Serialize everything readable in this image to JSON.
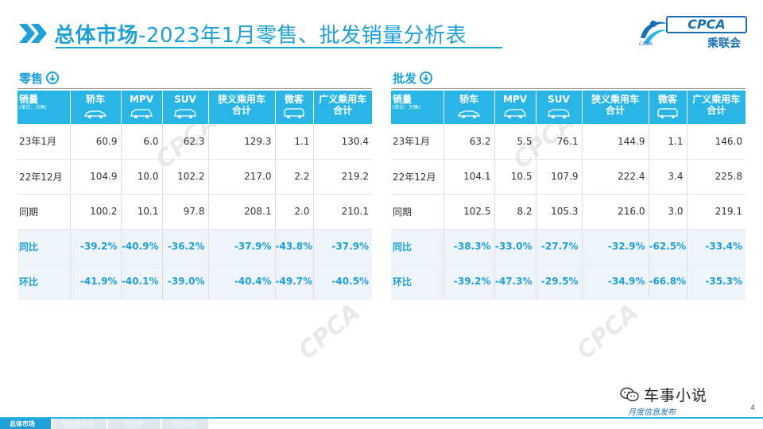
{
  "header": {
    "title_bold": "总体市场",
    "title_rest": "-2023年1月零售、批发销量分析表"
  },
  "logo": {
    "en": "CPCA",
    "cn": "乘联会",
    "sub": "CADA"
  },
  "retail": {
    "label": "零售",
    "columns": [
      "销量",
      "轿车",
      "MPV",
      "SUV",
      "狭义乘用车\n合计",
      "微客",
      "广义乘用车\n合计"
    ],
    "unit": "(单位：万辆)",
    "rows": [
      {
        "name": "23年1月",
        "cells": [
          "60.9",
          "6.0",
          "62.3",
          "129.3",
          "1.1",
          "130.4"
        ],
        "pct": false
      },
      {
        "name": "22年12月",
        "cells": [
          "104.9",
          "10.0",
          "102.2",
          "217.0",
          "2.2",
          "219.2"
        ],
        "pct": false
      },
      {
        "name": "同期",
        "cells": [
          "100.2",
          "10.1",
          "97.8",
          "208.1",
          "2.0",
          "210.1"
        ],
        "pct": false
      },
      {
        "name": "同比",
        "cells": [
          "-39.2%",
          "-40.9%",
          "-36.2%",
          "-37.9%",
          "-43.8%",
          "-37.9%"
        ],
        "pct": true
      },
      {
        "name": "环比",
        "cells": [
          "-41.9%",
          "-40.1%",
          "-39.0%",
          "-40.4%",
          "-49.7%",
          "-40.5%"
        ],
        "pct": true
      }
    ]
  },
  "wholesale": {
    "label": "批发",
    "columns": [
      "销量",
      "轿车",
      "MPV",
      "SUV",
      "狭义乘用车\n合计",
      "微客",
      "广义乘用车\n合计"
    ],
    "unit": "(单位：万辆)",
    "rows": [
      {
        "name": "23年1月",
        "cells": [
          "63.2",
          "5.5",
          "76.1",
          "144.9",
          "1.1",
          "146.0"
        ],
        "pct": false
      },
      {
        "name": "22年12月",
        "cells": [
          "104.1",
          "10.5",
          "107.9",
          "222.4",
          "3.4",
          "225.8"
        ],
        "pct": false
      },
      {
        "name": "同期",
        "cells": [
          "102.5",
          "8.2",
          "105.3",
          "216.0",
          "3.0",
          "219.1"
        ],
        "pct": false
      },
      {
        "name": "同比",
        "cells": [
          "-38.3%",
          "-33.0%",
          "-27.7%",
          "-32.9%",
          "-62.5%",
          "-33.4%"
        ],
        "pct": true
      },
      {
        "name": "环比",
        "cells": [
          "-39.2%",
          "-47.3%",
          "-29.5%",
          "-34.9%",
          "-66.8%",
          "-35.3%"
        ],
        "pct": true
      }
    ]
  },
  "brand": {
    "text": "车事小说"
  },
  "footer": {
    "tabs": [
      "总体市场",
      "新能源市场",
      "厂商分析",
      "市场分析"
    ],
    "slogan": "月度信息发布",
    "page": "4"
  },
  "colors": {
    "accent": "#1fa0d8",
    "header_bg": "#29b6e6",
    "pct_row_bg": "#eef4f9",
    "logo_blue": "#1a6fb4"
  }
}
